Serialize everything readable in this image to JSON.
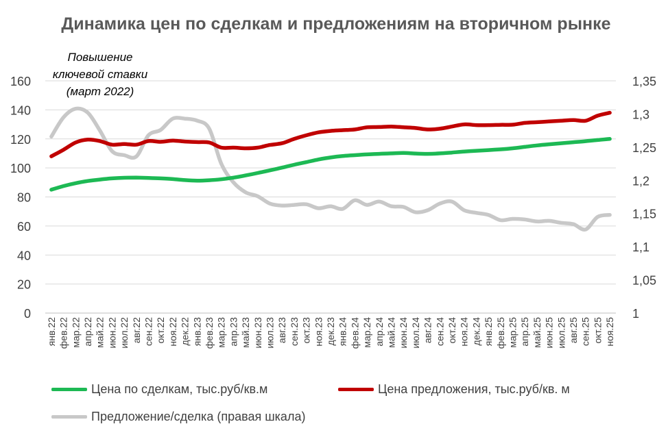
{
  "chart_data": {
    "type": "line",
    "title": "Динамика цен по сделкам и предложениям на вторичном рынке",
    "annotation": "Повышение ключевой ставки (март 2022)",
    "categories": [
      "янв.22",
      "фев.22",
      "мар.22",
      "апр.22",
      "май.22",
      "июн.22",
      "июл.22",
      "авг.22",
      "сен.22",
      "окт.22",
      "ноя.22",
      "дек.22",
      "янв.23",
      "фев.23",
      "мар.23",
      "апр.23",
      "май.23",
      "июн.23",
      "июл.23",
      "авг.23",
      "сен.23",
      "окт.23",
      "ноя.23",
      "дек.23",
      "янв.24",
      "фев.24",
      "мар.24",
      "апр.24",
      "май.24",
      "июн.24",
      "июл.24",
      "авг.24",
      "сен.24",
      "окт.24",
      "ноя.24",
      "дек.24",
      "янв.25",
      "фев.25",
      "мар.25",
      "апр.25",
      "май.25",
      "июн.25",
      "июл.25",
      "авг.25",
      "сен.25",
      "окт.25",
      "ноя.25"
    ],
    "yaxis_left": {
      "min": 0,
      "max": 160,
      "ticks": [
        "0",
        "20",
        "40",
        "60",
        "80",
        "100",
        "120",
        "140",
        "160"
      ]
    },
    "yaxis_right": {
      "min": 1,
      "max": 1.35,
      "ticks": [
        "1",
        "1,05",
        "1,1",
        "1,15",
        "1,2",
        "1,25",
        "1,3",
        "1,35"
      ]
    },
    "grid": true,
    "legend_position": "bottom",
    "series": [
      {
        "name": "Цена по сделкам, тыс.руб/кв.м",
        "axis": "left",
        "color": "#1DB954",
        "values": [
          85,
          87.5,
          89.5,
          91,
          92,
          92.8,
          93.2,
          93.3,
          93.1,
          92.8,
          92.3,
          91.6,
          91.2,
          91.5,
          92.2,
          93.3,
          94.8,
          96.5,
          98.3,
          100.2,
          102.2,
          104,
          105.8,
          107.2,
          108.2,
          108.8,
          109.3,
          109.7,
          110,
          110.3,
          109.9,
          109.7,
          110,
          110.6,
          111.3,
          111.8,
          112.3,
          112.8,
          113.5,
          114.5,
          115.5,
          116.3,
          117,
          117.7,
          118.4,
          119.2,
          120
        ]
      },
      {
        "name": "Цена предложения, тыс.руб/кв. м",
        "axis": "left",
        "color": "#C00000",
        "values": [
          108,
          112.5,
          117.5,
          119.5,
          118.5,
          116,
          116.5,
          116,
          118.5,
          118,
          118.8,
          118.2,
          117.8,
          117.5,
          114,
          114,
          113.5,
          114,
          115.8,
          117,
          120,
          122.5,
          124.5,
          125.5,
          126,
          126.5,
          128,
          128.2,
          128.5,
          128,
          127.5,
          126.5,
          127,
          128.5,
          130,
          129.5,
          129.5,
          129.7,
          129.8,
          131,
          131.5,
          132,
          132.5,
          133,
          132.5,
          136,
          138
        ]
      },
      {
        "name": "Предложение/сделка (правая шкала)",
        "axis": "right",
        "color": "#C8C8C8",
        "values": [
          1.266,
          1.295,
          1.308,
          1.302,
          1.275,
          1.244,
          1.238,
          1.236,
          1.268,
          1.276,
          1.293,
          1.293,
          1.29,
          1.278,
          1.225,
          1.197,
          1.182,
          1.176,
          1.165,
          1.162,
          1.163,
          1.164,
          1.158,
          1.161,
          1.157,
          1.17,
          1.163,
          1.168,
          1.161,
          1.16,
          1.152,
          1.155,
          1.165,
          1.168,
          1.155,
          1.151,
          1.148,
          1.14,
          1.142,
          1.141,
          1.138,
          1.139,
          1.136,
          1.134,
          1.126,
          1.145,
          1.148
        ]
      }
    ]
  }
}
